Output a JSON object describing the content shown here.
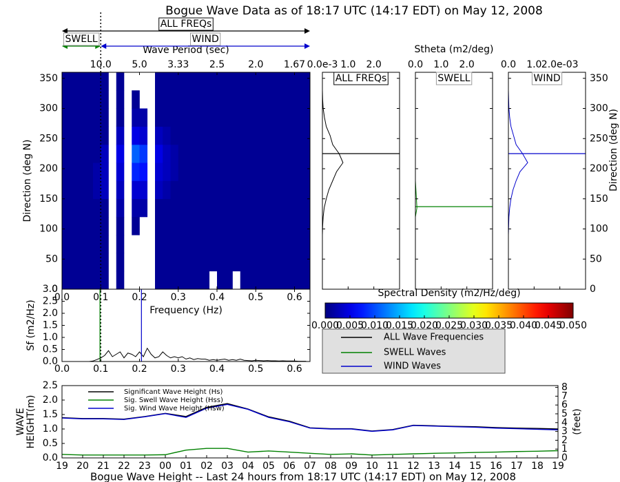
{
  "chart_data": [
    {
      "type": "heatmap",
      "title": "Bogue Wave Data as of 18:17 UTC (14:17 EDT) on May 12, 2008",
      "xlabel": "Frequency (Hz)",
      "ylabel": "Direction (deg N)",
      "x2label": "Wave Period (sec)",
      "xlim": [
        0,
        0.64
      ],
      "ylim": [
        0,
        360
      ],
      "xticks": [
        {
          "value": 0,
          "label": "0.0"
        },
        0.1,
        0.2,
        0.3,
        0.4,
        0.5,
        0.6
      ],
      "x2ticks": [
        {
          "value": 0.1,
          "label": "10.0"
        },
        {
          "value": 0.2,
          "label": "5.0"
        },
        {
          "value": 0.3,
          "label": "3.33"
        },
        {
          "value": 0.4,
          "label": "2.5"
        },
        {
          "value": 0.5,
          "label": "2.0"
        },
        {
          "value": 0.6,
          "label": "1.67"
        }
      ],
      "yticks": [
        0,
        50,
        100,
        150,
        200,
        250,
        300,
        350
      ],
      "xbins": [
        0,
        0.02,
        0.04,
        0.06,
        0.08,
        0.1,
        0.12,
        0.14,
        0.16,
        0.18,
        0.2,
        0.22,
        0.24,
        0.26,
        0.28,
        0.3,
        0.32,
        0.34,
        0.36,
        0.38,
        0.4,
        0.42,
        0.44,
        0.46,
        0.48,
        0.5,
        0.52,
        0.54,
        0.56,
        0.58,
        0.6,
        0.62,
        0.64
      ],
      "ybins": [
        0,
        30,
        60,
        90,
        120,
        150,
        180,
        210,
        240,
        270,
        300,
        330,
        360
      ],
      "z": [
        [
          0.001,
          0.001,
          0.001,
          0.001,
          0.001,
          0.001,
          null,
          0.001,
          null,
          null,
          null,
          null,
          0.001,
          0.001,
          0.001,
          0.001,
          0.001,
          0.001,
          0.001,
          null,
          0.001,
          0.001,
          null,
          0.001,
          0.001,
          0.001,
          0.001,
          0.001,
          0.001,
          0.001,
          0.001,
          0.001
        ],
        [
          0.001,
          0.001,
          0.001,
          0.001,
          0.001,
          0.001,
          null,
          0.001,
          null,
          null,
          null,
          null,
          0.001,
          0.001,
          0.001,
          0.001,
          0.001,
          0.001,
          0.001,
          0.001,
          0.001,
          0.001,
          0.001,
          0.001,
          0.001,
          0.001,
          0.001,
          0.001,
          0.001,
          0.001,
          0.001,
          0.001
        ],
        [
          0.001,
          0.001,
          0.001,
          0.001,
          0.001,
          0.001,
          null,
          0.001,
          null,
          null,
          null,
          null,
          0.001,
          0.001,
          0.001,
          0.001,
          0.001,
          0.001,
          0.001,
          0.001,
          0.001,
          0.001,
          0.001,
          0.001,
          0.001,
          0.001,
          0.001,
          0.001,
          0.001,
          0.001,
          0.001,
          0.001
        ],
        [
          0.001,
          0.001,
          0.001,
          0.001,
          0.001,
          0.001,
          null,
          0.001,
          null,
          0.001,
          null,
          null,
          0.001,
          0.001,
          0.001,
          0.001,
          0.001,
          0.001,
          0.001,
          0.001,
          0.001,
          0.001,
          0.001,
          0.001,
          0.001,
          0.001,
          0.001,
          0.001,
          0.001,
          0.001,
          0.001,
          0.001
        ],
        [
          0.001,
          0.001,
          0.001,
          0.001,
          0.001,
          0.001,
          null,
          0.002,
          null,
          0.002,
          0.002,
          null,
          0.001,
          0.001,
          0.001,
          0.001,
          0.001,
          0.001,
          0.001,
          0.001,
          0.001,
          0.001,
          0.001,
          0.001,
          0.001,
          0.001,
          0.001,
          0.001,
          0.001,
          0.001,
          0.001,
          0.001
        ],
        [
          0.001,
          0.001,
          0.001,
          0.001,
          0.002,
          0.003,
          null,
          0.003,
          null,
          0.004,
          0.004,
          null,
          0.003,
          0.002,
          0.001,
          0.001,
          0.001,
          0.001,
          0.001,
          0.001,
          0.001,
          0.001,
          0.001,
          0.001,
          0.001,
          0.001,
          0.001,
          0.001,
          0.001,
          0.001,
          0.001,
          0.001
        ],
        [
          0.001,
          0.001,
          0.001,
          0.001,
          0.002,
          0.003,
          null,
          0.004,
          null,
          0.008,
          0.007,
          null,
          0.004,
          0.003,
          0.002,
          0.001,
          0.001,
          0.001,
          0.001,
          0.001,
          0.001,
          0.001,
          0.001,
          0.001,
          0.001,
          0.001,
          0.001,
          0.001,
          0.001,
          0.001,
          0.001,
          0.001
        ],
        [
          0.001,
          0.001,
          0.001,
          0.001,
          0.001,
          0.003,
          null,
          0.005,
          null,
          0.011,
          0.009,
          null,
          0.005,
          0.003,
          0.002,
          0.001,
          0.001,
          0.001,
          0.001,
          0.001,
          0.001,
          0.001,
          0.001,
          0.001,
          0.001,
          0.001,
          0.001,
          0.001,
          0.001,
          0.001,
          0.001,
          0.001
        ],
        [
          0.001,
          0.001,
          0.001,
          0.001,
          0.001,
          0.001,
          null,
          0.003,
          null,
          0.005,
          0.004,
          null,
          0.003,
          0.002,
          0.001,
          0.001,
          0.001,
          0.001,
          0.001,
          0.001,
          0.001,
          0.001,
          0.001,
          0.001,
          0.001,
          0.001,
          0.001,
          0.001,
          0.001,
          0.001,
          0.001,
          0.001
        ],
        [
          0.001,
          0.001,
          0.001,
          0.001,
          0.001,
          0.001,
          null,
          0.001,
          null,
          0.002,
          0.002,
          null,
          0.001,
          0.001,
          0.001,
          0.001,
          0.001,
          0.001,
          0.001,
          0.001,
          0.001,
          0.001,
          0.001,
          0.001,
          0.001,
          0.001,
          0.001,
          0.001,
          0.001,
          0.001,
          0.001,
          0.001
        ],
        [
          0.001,
          0.001,
          0.001,
          0.001,
          0.001,
          0.001,
          null,
          0.001,
          null,
          0.001,
          null,
          null,
          0.001,
          0.001,
          0.001,
          0.001,
          0.001,
          0.001,
          0.001,
          0.001,
          0.001,
          0.001,
          0.001,
          0.001,
          0.001,
          0.001,
          0.001,
          0.001,
          0.001,
          0.001,
          0.001,
          0.001
        ],
        [
          0.001,
          0.001,
          0.001,
          0.001,
          0.001,
          0.001,
          null,
          0.001,
          null,
          null,
          null,
          null,
          0.001,
          0.001,
          0.001,
          0.001,
          0.001,
          0.001,
          0.001,
          0.001,
          0.001,
          0.001,
          0.001,
          0.001,
          0.001,
          0.001,
          0.001,
          0.001,
          0.001,
          0.001,
          0.001,
          0.001
        ]
      ],
      "colormap": "jet",
      "colorbar": {
        "label": "Spectral Density (m2/Hz/deg)",
        "lim": [
          0,
          0.05
        ],
        "ticks": [
          {
            "value": 0,
            "label": "0.000"
          },
          0.005,
          {
            "value": 0.01,
            "label": "0.010"
          },
          0.015,
          {
            "value": 0.02,
            "label": "0.020"
          },
          0.025,
          {
            "value": 0.03,
            "label": "0.030"
          },
          0.035,
          {
            "value": 0.04,
            "label": "0.040"
          },
          0.045,
          {
            "value": 0.05,
            "label": "0.050"
          }
        ]
      },
      "separator": 0.1,
      "annotations": [
        {
          "text": "ALL FREQs",
          "from": 0,
          "to": 0.64,
          "color": "#000000"
        },
        {
          "text": "SWELL",
          "from": 0,
          "to": 0.1,
          "color": "#008000"
        },
        {
          "text": "WIND",
          "from": 0.1,
          "to": 0.64,
          "color": "#0000cc"
        }
      ]
    },
    {
      "type": "line",
      "orientation": "horizontal",
      "title": "ALL FREQs",
      "color": "#000000",
      "xlim": [
        0,
        3
      ],
      "ylim": [
        0,
        360
      ],
      "xticks": [
        {
          "value": 0,
          "label": "0.0e-3"
        },
        {
          "value": 1,
          "label": "1.0"
        },
        {
          "value": 2,
          "label": "2.0"
        }
      ],
      "yticks": [
        0,
        50,
        100,
        150,
        200,
        250,
        300,
        350
      ],
      "show_ytick_labels": false,
      "y": [
        0,
        15,
        30,
        45,
        60,
        75,
        90,
        105,
        120,
        135,
        150,
        165,
        180,
        195,
        210,
        225,
        240,
        255,
        270,
        285,
        300,
        315,
        330,
        345,
        360
      ],
      "values": [
        0,
        0,
        0,
        0,
        0,
        0,
        0,
        0.01,
        0.03,
        0.07,
        0.15,
        0.25,
        0.4,
        0.55,
        0.8,
        0.65,
        0.4,
        0.3,
        0.15,
        0.08,
        0.03,
        0.01,
        0,
        0,
        0
      ],
      "marker_direction": 225
    },
    {
      "type": "line",
      "orientation": "horizontal",
      "title": "SWELL",
      "color": "#008000",
      "xlabel": "Stheta (m2/deg)",
      "xlim": [
        0,
        3
      ],
      "ylim": [
        0,
        360
      ],
      "xticks": [
        {
          "value": 0,
          "label": "0.0"
        },
        {
          "value": 1,
          "label": "1.0"
        },
        {
          "value": 2,
          "label": "2.0"
        }
      ],
      "yticks": [
        0,
        50,
        100,
        150,
        200,
        250,
        300,
        350
      ],
      "show_ytick_labels": false,
      "y": [
        0,
        15,
        30,
        45,
        60,
        75,
        90,
        105,
        120,
        135,
        150,
        165,
        180,
        195,
        210,
        225,
        240,
        255,
        270,
        285,
        300,
        315,
        330,
        345,
        360
      ],
      "values": [
        0,
        0,
        0,
        0,
        0,
        0,
        0,
        0,
        0,
        0.06,
        0.04,
        0.02,
        0,
        0,
        0,
        0,
        0,
        0,
        0,
        0,
        0,
        0,
        0,
        0,
        0
      ],
      "marker_direction": 137
    },
    {
      "type": "line",
      "orientation": "horizontal",
      "title": "WIND",
      "color": "#0000cc",
      "ylabel": "Direction (deg N)",
      "xlim": [
        0,
        3
      ],
      "ylim": [
        0,
        360
      ],
      "xticks": [
        {
          "value": 0,
          "label": "0.0"
        },
        {
          "value": 1,
          "label": "1.0"
        },
        {
          "value": 2,
          "label": "2.0e-03"
        }
      ],
      "yticks": [
        0,
        50,
        100,
        150,
        200,
        250,
        300,
        350
      ],
      "show_ytick_labels": true,
      "y": [
        0,
        15,
        30,
        45,
        60,
        75,
        90,
        105,
        120,
        135,
        150,
        165,
        180,
        195,
        210,
        225,
        240,
        255,
        270,
        285,
        300,
        315,
        330,
        345,
        360
      ],
      "values": [
        0,
        0,
        0,
        0,
        0,
        0,
        0,
        0.01,
        0.02,
        0.05,
        0.1,
        0.18,
        0.3,
        0.45,
        0.75,
        0.55,
        0.3,
        0.2,
        0.1,
        0.05,
        0.02,
        0.01,
        0,
        0,
        0
      ],
      "marker_direction": 225
    },
    {
      "type": "line",
      "ylabel": "Sf (m2/Hz)",
      "color": "#000000",
      "xlim": [
        0,
        0.64
      ],
      "ylim": [
        0,
        3
      ],
      "xticks": [
        {
          "value": 0,
          "label": "0.0"
        },
        0.1,
        0.2,
        0.3,
        0.4,
        0.5,
        0.6
      ],
      "yticks": [
        {
          "value": 0,
          "label": "0.0"
        },
        0.5,
        {
          "value": 1,
          "label": "1.0"
        },
        1.5,
        {
          "value": 2,
          "label": "2.0"
        },
        2.5,
        {
          "value": 3,
          "label": "3.0"
        }
      ],
      "x": [
        0,
        0.01,
        0.02,
        0.03,
        0.04,
        0.05,
        0.06,
        0.07,
        0.08,
        0.09,
        0.1,
        0.11,
        0.12,
        0.13,
        0.14,
        0.15,
        0.16,
        0.17,
        0.18,
        0.19,
        0.2,
        0.21,
        0.22,
        0.23,
        0.24,
        0.25,
        0.26,
        0.27,
        0.28,
        0.29,
        0.3,
        0.31,
        0.32,
        0.33,
        0.34,
        0.35,
        0.36,
        0.37,
        0.38,
        0.39,
        0.4,
        0.41,
        0.42,
        0.43,
        0.44,
        0.45,
        0.46,
        0.47,
        0.48,
        0.49,
        0.5,
        0.51,
        0.52,
        0.53,
        0.54,
        0.55,
        0.56,
        0.57,
        0.58,
        0.59,
        0.6,
        0.61,
        0.62,
        0.63
      ],
      "values": [
        0,
        0,
        0,
        0,
        0,
        0,
        0,
        0,
        0.02,
        0.08,
        0.15,
        0.25,
        0.45,
        0.2,
        0.3,
        0.4,
        0.15,
        0.35,
        0.3,
        0.2,
        0.4,
        0.2,
        0.55,
        0.3,
        0.15,
        0.2,
        0.4,
        0.25,
        0.15,
        0.2,
        0.15,
        0.2,
        0.1,
        0.15,
        0.08,
        0.12,
        0.1,
        0.1,
        0.05,
        0.08,
        0.05,
        0.08,
        0.1,
        0.05,
        0.08,
        0.05,
        0.1,
        0.05,
        0.04,
        0.03,
        0.05,
        0.04,
        0.03,
        0.04,
        0.03,
        0.03,
        0.02,
        0.03,
        0.02,
        0.02,
        0.02,
        0.01,
        0.01,
        0.01
      ],
      "vlines": [
        {
          "x": 0.098,
          "color": "#008000"
        },
        {
          "x": 0.205,
          "color": "#0000cc"
        }
      ],
      "legend_entries": [
        {
          "name": "ALL Wave Frequencies",
          "color": "#000000"
        },
        {
          "name": "SWELL Waves",
          "color": "#008000"
        },
        {
          "name": "WIND Waves",
          "color": "#0000cc"
        }
      ]
    },
    {
      "type": "line",
      "title": "Bogue Wave Height -- Last 24 hours from 18:17 UTC (14:17 EDT) on May 12, 2008",
      "ylabel": [
        "WAVE",
        "HEIGHT(m)"
      ],
      "y2label": "(feet)",
      "legend": "upper left",
      "categories": [
        "19",
        "20",
        "21",
        "22",
        "23",
        "00",
        "01",
        "02",
        "03",
        "04",
        "05",
        "06",
        "07",
        "08",
        "09",
        "10",
        "11",
        "12",
        "13",
        "14",
        "15",
        "16",
        "17",
        "18",
        "19"
      ],
      "ylim": [
        0,
        2.5
      ],
      "yticks": [
        {
          "value": 0,
          "label": "0.0"
        },
        0.5,
        {
          "value": 1,
          "label": "1.0"
        },
        1.5,
        {
          "value": 2,
          "label": "2.0"
        },
        2.5
      ],
      "y2lim": [
        0,
        8.2
      ],
      "y2ticks": [
        0,
        1,
        2,
        3,
        4,
        5,
        6,
        7,
        8
      ],
      "series": [
        {
          "name": "Significant Wave Height (Hs)",
          "color": "#000000",
          "values": [
            1.39,
            1.36,
            1.36,
            1.34,
            1.43,
            1.54,
            1.43,
            1.75,
            1.88,
            1.69,
            1.42,
            1.27,
            1.04,
            1.01,
            1.01,
            0.93,
            0.98,
            1.13,
            1.11,
            1.09,
            1.08,
            1.05,
            1.03,
            1.02,
            1.0
          ]
        },
        {
          "name": "Sig. Swell Wave Height (Hss)",
          "color": "#008000",
          "values": [
            0.12,
            0.1,
            0.1,
            0.1,
            0.1,
            0.11,
            0.27,
            0.33,
            0.33,
            0.2,
            0.24,
            0.2,
            0.16,
            0.12,
            0.14,
            0.1,
            0.12,
            0.14,
            0.16,
            0.17,
            0.19,
            0.2,
            0.22,
            0.23,
            0.25
          ]
        },
        {
          "name": "Sig. Wind Wave Height (Hsw)",
          "color": "#0000cc",
          "values": [
            1.38,
            1.35,
            1.35,
            1.33,
            1.42,
            1.53,
            1.4,
            1.72,
            1.85,
            1.68,
            1.4,
            1.25,
            1.03,
            1.0,
            1.0,
            0.92,
            0.97,
            1.12,
            1.1,
            1.08,
            1.06,
            1.03,
            1.01,
            0.99,
            0.97
          ]
        }
      ]
    }
  ]
}
